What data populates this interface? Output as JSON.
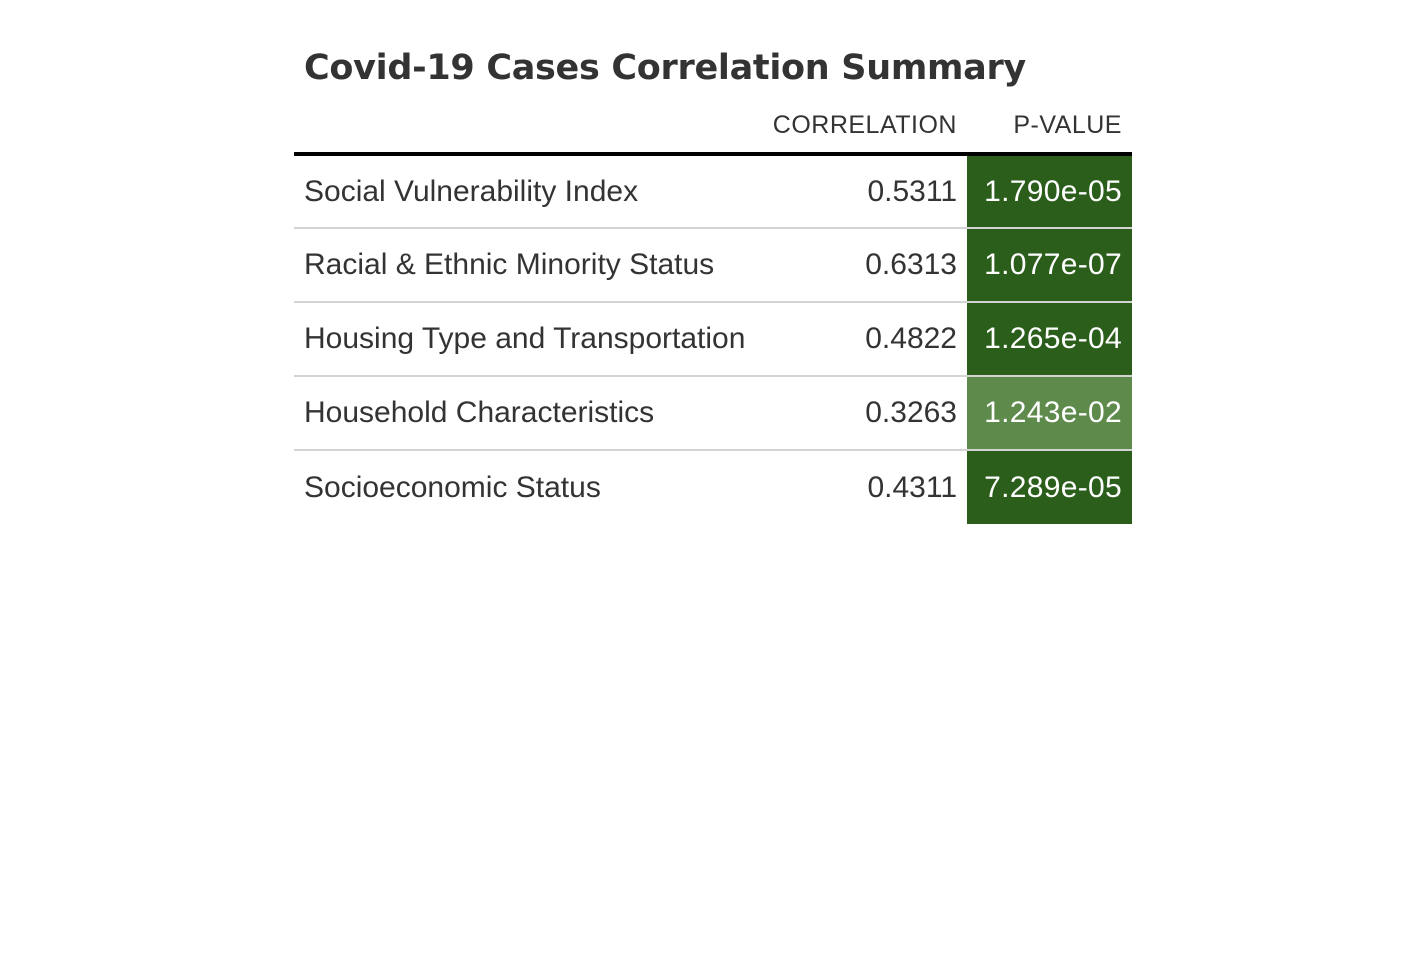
{
  "table": {
    "title": "Covid-19 Cases Correlation Summary",
    "columns": [
      "CORRELATION",
      "P-VALUE"
    ],
    "rows": [
      {
        "label": "Social Vulnerability Index",
        "correlation": "0.5311",
        "p_value": "1.790e-05",
        "fill": "#2b5e1b"
      },
      {
        "label": "Racial & Ethnic Minority Status",
        "correlation": "0.6313",
        "p_value": "1.077e-07",
        "fill": "#2b5e1b"
      },
      {
        "label": "Housing Type and Transportation",
        "correlation": "0.4822",
        "p_value": "1.265e-04",
        "fill": "#2b5e1b"
      },
      {
        "label": "Household Characteristics",
        "correlation": "0.3263",
        "p_value": "1.243e-02",
        "fill": "#5e8a4b"
      },
      {
        "label": "Socioeconomic Status",
        "correlation": "0.4311",
        "p_value": "7.289e-05",
        "fill": "#2b5e1b"
      }
    ]
  },
  "chart_data": {
    "type": "table",
    "title": "Covid-19 Cases Correlation Summary",
    "columns": [
      "CORRELATION",
      "P-VALUE"
    ],
    "categories": [
      "Social Vulnerability Index",
      "Racial & Ethnic Minority Status",
      "Housing Type and Transportation",
      "Household Characteristics",
      "Socioeconomic Status"
    ],
    "series": [
      {
        "name": "CORRELATION",
        "values": [
          0.5311,
          0.6313,
          0.4822,
          0.3263,
          0.4311
        ]
      },
      {
        "name": "P-VALUE",
        "values": [
          1.79e-05,
          1.077e-07,
          0.0001265,
          0.01243,
          7.289e-05
        ]
      }
    ],
    "colors": {
      "p_value_strong": "#2b5e1b",
      "p_value_weak": "#5e8a4b"
    }
  }
}
